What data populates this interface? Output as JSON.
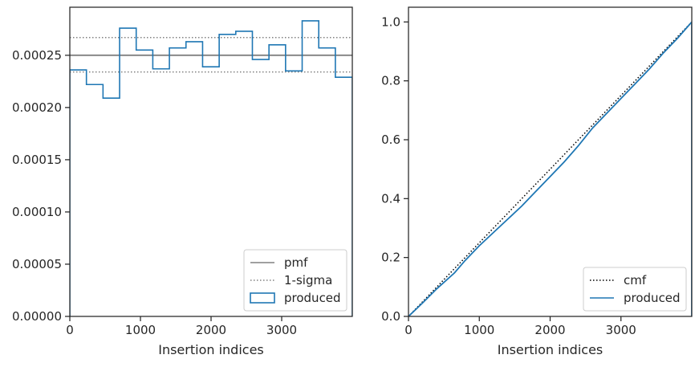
{
  "chart_data": [
    {
      "type": "line",
      "title": "",
      "xlabel": "Insertion indices",
      "ylabel": "",
      "xlim": [
        0,
        4000
      ],
      "ylim": [
        0,
        0.000296
      ],
      "xticks": [
        0,
        1000,
        2000,
        3000
      ],
      "xtick_labels": [
        "0",
        "1000",
        "2000",
        "3000"
      ],
      "yticks": [
        0,
        5e-05,
        0.0001,
        0.00015,
        0.0002,
        0.00025
      ],
      "ytick_labels": [
        "0.00000",
        "0.00005",
        "0.00010",
        "0.00015",
        "0.00020",
        "0.00025"
      ],
      "grid": false,
      "legend_position": "lower-right",
      "series": [
        {
          "name": "pmf",
          "style": "solid",
          "color": "#808080",
          "x": [
            0,
            4000
          ],
          "y": [
            0.00025,
            0.00025
          ]
        },
        {
          "name": "1-sigma",
          "style": "dotted",
          "color": "#808080",
          "lines": [
            0.000267,
            0.000234
          ]
        },
        {
          "name": "produced",
          "style": "step",
          "color": "#1f77b4",
          "bin_edges": [
            0,
            235,
            470,
            705,
            940,
            1175,
            1410,
            1645,
            1880,
            2115,
            2350,
            2585,
            2820,
            3055,
            3290,
            3525,
            3760,
            4000
          ],
          "values": [
            0.000236,
            0.000222,
            0.000209,
            0.000276,
            0.000255,
            0.000237,
            0.000257,
            0.000263,
            0.000239,
            0.00027,
            0.000273,
            0.000246,
            0.00026,
            0.000235,
            0.000283,
            0.000257,
            0.000229
          ]
        }
      ]
    },
    {
      "type": "line",
      "title": "",
      "xlabel": "Insertion indices",
      "ylabel": "",
      "xlim": [
        0,
        4000
      ],
      "ylim": [
        0,
        1.05
      ],
      "xticks": [
        0,
        1000,
        2000,
        3000
      ],
      "xtick_labels": [
        "0",
        "1000",
        "2000",
        "3000"
      ],
      "yticks": [
        0,
        0.2,
        0.4,
        0.6,
        0.8,
        1.0
      ],
      "ytick_labels": [
        "0.0",
        "0.2",
        "0.4",
        "0.6",
        "0.8",
        "1.0"
      ],
      "grid": false,
      "legend_position": "lower-right",
      "series": [
        {
          "name": "cmf",
          "style": "dotted",
          "color": "#000000",
          "x": [
            0,
            4000
          ],
          "y": [
            0,
            1.0
          ]
        },
        {
          "name": "produced",
          "style": "line",
          "color": "#1f77b4",
          "x": [
            0,
            200,
            400,
            650,
            800,
            1000,
            1200,
            1400,
            1600,
            1800,
            2000,
            2200,
            2400,
            2600,
            2800,
            3000,
            3200,
            3400,
            3600,
            3800,
            4000
          ],
          "y": [
            0,
            0.046,
            0.094,
            0.148,
            0.19,
            0.24,
            0.285,
            0.33,
            0.375,
            0.425,
            0.475,
            0.525,
            0.58,
            0.64,
            0.69,
            0.74,
            0.79,
            0.84,
            0.895,
            0.945,
            1.0
          ]
        }
      ]
    }
  ]
}
